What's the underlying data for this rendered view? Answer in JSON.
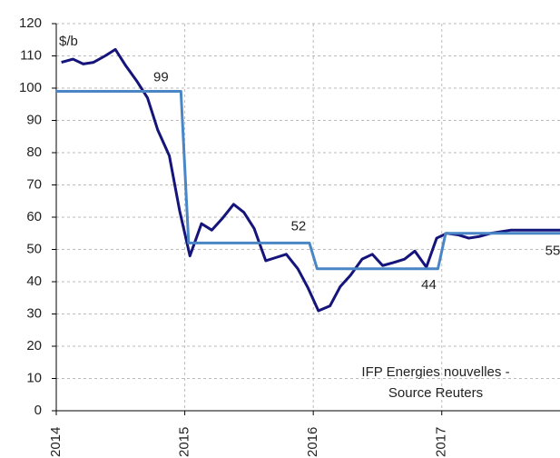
{
  "chart_data": {
    "type": "line",
    "unit_label": "$/b",
    "annotation": [
      "IFP Energies nouvelles -",
      "Source Reuters"
    ],
    "xlim": [
      2014,
      2017.92
    ],
    "xticks": [
      2014,
      2015,
      2016,
      2017
    ],
    "ylim": [
      0,
      120
    ],
    "yticks": [
      0,
      10,
      20,
      30,
      40,
      50,
      60,
      70,
      80,
      90,
      100,
      110,
      120
    ],
    "grid": true,
    "series": [
      {
        "color": "#14147a",
        "x": [
          2014.04,
          2014.13,
          2014.21,
          2014.29,
          2014.38,
          2014.46,
          2014.54,
          2014.63,
          2014.71,
          2014.79,
          2014.88,
          2014.96,
          2015.04,
          2015.13,
          2015.21,
          2015.29,
          2015.38,
          2015.46,
          2015.54,
          2015.63,
          2015.71,
          2015.79,
          2015.88,
          2015.96,
          2016.04,
          2016.13,
          2016.21,
          2016.29,
          2016.38,
          2016.46,
          2016.54,
          2016.63,
          2016.71,
          2016.79,
          2016.88,
          2016.96,
          2017.04,
          2017.13,
          2017.21,
          2017.29,
          2017.38,
          2017.46,
          2017.54,
          2017.63,
          2017.71,
          2017.79,
          2017.92
        ],
        "values": [
          108,
          109,
          107.5,
          108,
          110,
          112,
          107,
          102,
          97,
          87,
          79,
          62,
          48,
          58,
          56,
          59.5,
          64,
          61.5,
          56.5,
          46.5,
          47.5,
          48.5,
          44,
          38,
          31,
          32.5,
          38.5,
          42,
          47,
          48.5,
          45,
          46,
          47,
          49.5,
          44.5,
          53.5,
          55,
          54.5,
          53.5,
          54,
          55,
          55.5,
          56,
          56,
          56,
          56,
          56
        ]
      },
      {
        "color": "#4a86c5",
        "x": [
          2014,
          2014.97,
          2015.03,
          2015.97,
          2016.03,
          2016.97,
          2017.03,
          2017.92
        ],
        "values": [
          99,
          99,
          52,
          52,
          44,
          44,
          55,
          55
        ]
      }
    ]
  }
}
